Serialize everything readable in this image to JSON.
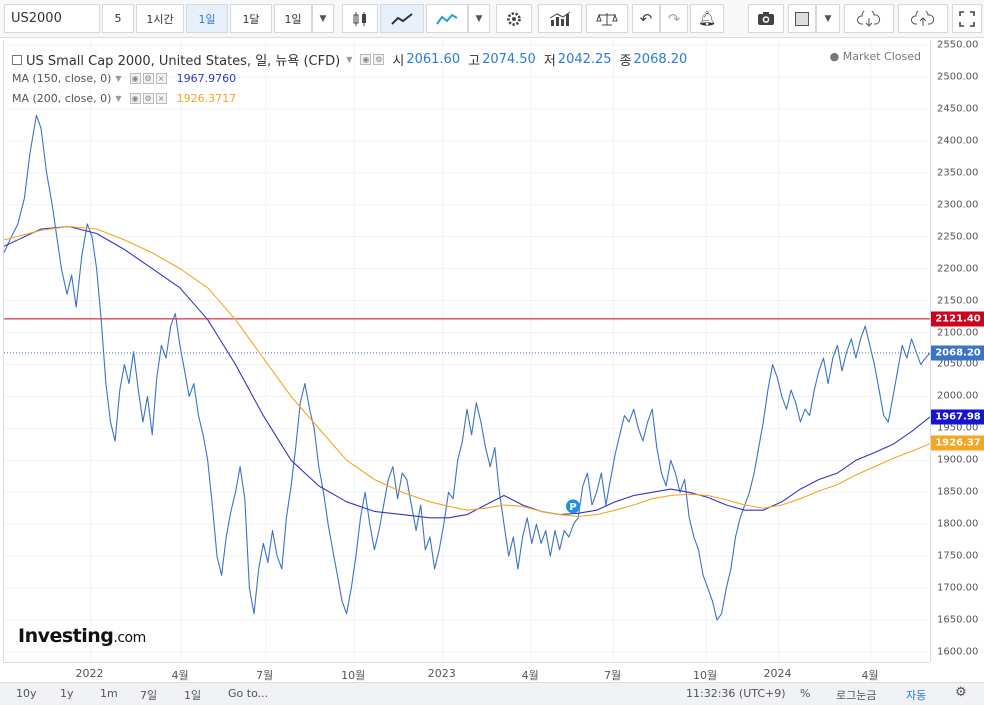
{
  "toolbar": {
    "symbol": "US2000",
    "interval_value": "5",
    "btn_1h": "1시간",
    "btn_1d": "1일",
    "btn_1mo": "1달",
    "btn_range": "1일"
  },
  "legend": {
    "title": "US Small Cap 2000, United States, 일, 뉴욕 (CFD)",
    "open_label": "시",
    "open": "2061.60",
    "high_label": "고",
    "high": "2074.50",
    "low_label": "저",
    "low": "2042.25",
    "close_label": "종",
    "close": "2068.20",
    "ma150_label": "MA (150, close, 0)",
    "ma150": "1967.9760",
    "ma200_label": "MA (200, close, 0)",
    "ma200": "1926.3717",
    "market_status": "Market Closed"
  },
  "logo": {
    "main": "Investing",
    "suffix": ".com"
  },
  "bottom": {
    "r10y": "10y",
    "r1y": "1y",
    "r1m": "1m",
    "r7d": "7일",
    "r1d": "1일",
    "goto": "Go to...",
    "time": "11:32:36 (UTC+9)",
    "percent": "%",
    "log": "로그눈금",
    "auto": "자동"
  },
  "colors": {
    "price": "#3b73c9",
    "ma150": "#3535c8",
    "ma200": "#f5a623",
    "resistance": "#d0021b",
    "last": "#5b8de0"
  },
  "chart_data": {
    "type": "line",
    "y_axis": {
      "min": 1600,
      "max": 2550,
      "ticks": [
        "1600.00",
        "1650.00",
        "1700.00",
        "1750.00",
        "1800.00",
        "1850.00",
        "1900.00",
        "1950.00",
        "2000.00",
        "2050.00",
        "2100.00",
        "2150.00",
        "2200.00",
        "2250.00",
        "2300.00",
        "2350.00",
        "2400.00",
        "2450.00",
        "2500.00",
        "2550.00"
      ]
    },
    "x_ticks": [
      "2022",
      "4월",
      "7월",
      "10월",
      "2023",
      "4월",
      "7월",
      "10월",
      "2024",
      "4월"
    ],
    "x_tick_positions": [
      0.0934,
      0.1912,
      0.2826,
      0.3782,
      0.4738,
      0.5693,
      0.6583,
      0.7582,
      0.8364,
      0.9363
    ],
    "markers": [
      {
        "label": "P",
        "x": 0.6145,
        "y": 1828
      }
    ],
    "hlines": [
      {
        "value": 2121.4,
        "label": "2121.40",
        "color": "#d0021b",
        "style": "solid"
      },
      {
        "value": 2068.2,
        "label": "2068.20",
        "color": "#3b73c9",
        "style": "dotted"
      }
    ],
    "value_tags": [
      {
        "value": 1967.98,
        "label": "1967.98",
        "color": "#1414d2"
      },
      {
        "value": 1926.37,
        "label": "1926.37",
        "color": "#f5a623"
      }
    ],
    "series": [
      {
        "key": "price",
        "color": "#3b73c9",
        "width": 1.1,
        "points": [
          [
            0,
            2225
          ],
          [
            0.008,
            2250
          ],
          [
            0.015,
            2270
          ],
          [
            0.022,
            2310
          ],
          [
            0.028,
            2380
          ],
          [
            0.035,
            2440
          ],
          [
            0.04,
            2420
          ],
          [
            0.046,
            2350
          ],
          [
            0.052,
            2300
          ],
          [
            0.058,
            2240
          ],
          [
            0.062,
            2200
          ],
          [
            0.068,
            2160
          ],
          [
            0.073,
            2190
          ],
          [
            0.078,
            2140
          ],
          [
            0.084,
            2220
          ],
          [
            0.09,
            2270
          ],
          [
            0.095,
            2250
          ],
          [
            0.1,
            2200
          ],
          [
            0.105,
            2120
          ],
          [
            0.11,
            2020
          ],
          [
            0.115,
            1960
          ],
          [
            0.12,
            1930
          ],
          [
            0.125,
            2010
          ],
          [
            0.13,
            2050
          ],
          [
            0.135,
            2020
          ],
          [
            0.14,
            2070
          ],
          [
            0.145,
            2010
          ],
          [
            0.15,
            1960
          ],
          [
            0.155,
            2000
          ],
          [
            0.16,
            1940
          ],
          [
            0.165,
            2030
          ],
          [
            0.17,
            2080
          ],
          [
            0.175,
            2060
          ],
          [
            0.18,
            2110
          ],
          [
            0.185,
            2130
          ],
          [
            0.19,
            2080
          ],
          [
            0.195,
            2040
          ],
          [
            0.2,
            2000
          ],
          [
            0.205,
            2020
          ],
          [
            0.21,
            1970
          ],
          [
            0.215,
            1940
          ],
          [
            0.22,
            1900
          ],
          [
            0.225,
            1830
          ],
          [
            0.23,
            1750
          ],
          [
            0.235,
            1720
          ],
          [
            0.24,
            1780
          ],
          [
            0.245,
            1820
          ],
          [
            0.25,
            1850
          ],
          [
            0.255,
            1890
          ],
          [
            0.26,
            1840
          ],
          [
            0.265,
            1700
          ],
          [
            0.27,
            1660
          ],
          [
            0.275,
            1730
          ],
          [
            0.28,
            1770
          ],
          [
            0.285,
            1740
          ],
          [
            0.29,
            1790
          ],
          [
            0.295,
            1750
          ],
          [
            0.3,
            1730
          ],
          [
            0.305,
            1810
          ],
          [
            0.31,
            1860
          ],
          [
            0.315,
            1920
          ],
          [
            0.32,
            1990
          ],
          [
            0.325,
            2020
          ],
          [
            0.33,
            1980
          ],
          [
            0.335,
            1950
          ],
          [
            0.34,
            1890
          ],
          [
            0.345,
            1850
          ],
          [
            0.35,
            1800
          ],
          [
            0.355,
            1760
          ],
          [
            0.36,
            1720
          ],
          [
            0.365,
            1680
          ],
          [
            0.37,
            1660
          ],
          [
            0.375,
            1700
          ],
          [
            0.38,
            1750
          ],
          [
            0.385,
            1810
          ],
          [
            0.39,
            1850
          ],
          [
            0.395,
            1800
          ],
          [
            0.4,
            1760
          ],
          [
            0.405,
            1790
          ],
          [
            0.41,
            1830
          ],
          [
            0.415,
            1870
          ],
          [
            0.42,
            1890
          ],
          [
            0.425,
            1840
          ],
          [
            0.43,
            1880
          ],
          [
            0.435,
            1870
          ],
          [
            0.44,
            1830
          ],
          [
            0.445,
            1790
          ],
          [
            0.45,
            1830
          ],
          [
            0.455,
            1760
          ],
          [
            0.46,
            1780
          ],
          [
            0.465,
            1730
          ],
          [
            0.47,
            1760
          ],
          [
            0.475,
            1800
          ],
          [
            0.48,
            1850
          ],
          [
            0.485,
            1840
          ],
          [
            0.49,
            1900
          ],
          [
            0.495,
            1930
          ],
          [
            0.5,
            1980
          ],
          [
            0.505,
            1940
          ],
          [
            0.51,
            1990
          ],
          [
            0.515,
            1960
          ],
          [
            0.52,
            1920
          ],
          [
            0.525,
            1890
          ],
          [
            0.53,
            1920
          ],
          [
            0.535,
            1850
          ],
          [
            0.54,
            1800
          ],
          [
            0.545,
            1750
          ],
          [
            0.55,
            1780
          ],
          [
            0.555,
            1730
          ],
          [
            0.56,
            1780
          ],
          [
            0.565,
            1810
          ],
          [
            0.57,
            1770
          ],
          [
            0.575,
            1800
          ],
          [
            0.58,
            1770
          ],
          [
            0.585,
            1790
          ],
          [
            0.59,
            1750
          ],
          [
            0.595,
            1790
          ],
          [
            0.6,
            1760
          ],
          [
            0.605,
            1790
          ],
          [
            0.61,
            1780
          ],
          [
            0.615,
            1800
          ],
          [
            0.62,
            1810
          ],
          [
            0.625,
            1860
          ],
          [
            0.63,
            1880
          ],
          [
            0.635,
            1830
          ],
          [
            0.64,
            1850
          ],
          [
            0.645,
            1880
          ],
          [
            0.65,
            1830
          ],
          [
            0.655,
            1870
          ],
          [
            0.66,
            1910
          ],
          [
            0.665,
            1940
          ],
          [
            0.67,
            1970
          ],
          [
            0.675,
            1960
          ],
          [
            0.68,
            1980
          ],
          [
            0.685,
            1950
          ],
          [
            0.69,
            1930
          ],
          [
            0.695,
            1960
          ],
          [
            0.7,
            1980
          ],
          [
            0.705,
            1920
          ],
          [
            0.71,
            1880
          ],
          [
            0.715,
            1860
          ],
          [
            0.72,
            1900
          ],
          [
            0.725,
            1880
          ],
          [
            0.73,
            1850
          ],
          [
            0.735,
            1870
          ],
          [
            0.74,
            1810
          ],
          [
            0.745,
            1780
          ],
          [
            0.75,
            1760
          ],
          [
            0.755,
            1720
          ],
          [
            0.76,
            1700
          ],
          [
            0.765,
            1680
          ],
          [
            0.77,
            1650
          ],
          [
            0.775,
            1660
          ],
          [
            0.78,
            1700
          ],
          [
            0.785,
            1730
          ],
          [
            0.79,
            1780
          ],
          [
            0.795,
            1810
          ],
          [
            0.8,
            1830
          ],
          [
            0.805,
            1850
          ],
          [
            0.81,
            1880
          ],
          [
            0.815,
            1920
          ],
          [
            0.82,
            1960
          ],
          [
            0.825,
            2010
          ],
          [
            0.83,
            2050
          ],
          [
            0.835,
            2030
          ],
          [
            0.84,
            2000
          ],
          [
            0.845,
            1980
          ],
          [
            0.85,
            2010
          ],
          [
            0.855,
            1990
          ],
          [
            0.86,
            1960
          ],
          [
            0.865,
            1980
          ],
          [
            0.87,
            1970
          ],
          [
            0.875,
            2010
          ],
          [
            0.88,
            2040
          ],
          [
            0.885,
            2060
          ],
          [
            0.89,
            2020
          ],
          [
            0.895,
            2060
          ],
          [
            0.9,
            2080
          ],
          [
            0.905,
            2040
          ],
          [
            0.91,
            2070
          ],
          [
            0.915,
            2090
          ],
          [
            0.92,
            2060
          ],
          [
            0.925,
            2090
          ],
          [
            0.93,
            2110
          ],
          [
            0.935,
            2080
          ],
          [
            0.94,
            2050
          ],
          [
            0.945,
            2010
          ],
          [
            0.95,
            1970
          ],
          [
            0.955,
            1960
          ],
          [
            0.96,
            2000
          ],
          [
            0.965,
            2040
          ],
          [
            0.97,
            2080
          ],
          [
            0.975,
            2060
          ],
          [
            0.98,
            2090
          ],
          [
            0.985,
            2070
          ],
          [
            0.99,
            2050
          ],
          [
            0.995,
            2060
          ],
          [
            1.0,
            2068
          ]
        ]
      },
      {
        "key": "ma150",
        "color": "#3535c8",
        "width": 1.1,
        "points": [
          [
            0,
            2235
          ],
          [
            0.04,
            2262
          ],
          [
            0.07,
            2266
          ],
          [
            0.1,
            2255
          ],
          [
            0.13,
            2230
          ],
          [
            0.16,
            2200
          ],
          [
            0.19,
            2170
          ],
          [
            0.22,
            2120
          ],
          [
            0.25,
            2050
          ],
          [
            0.28,
            1970
          ],
          [
            0.31,
            1900
          ],
          [
            0.34,
            1860
          ],
          [
            0.37,
            1835
          ],
          [
            0.4,
            1820
          ],
          [
            0.43,
            1815
          ],
          [
            0.46,
            1810
          ],
          [
            0.48,
            1810
          ],
          [
            0.5,
            1815
          ],
          [
            0.52,
            1830
          ],
          [
            0.54,
            1845
          ],
          [
            0.56,
            1830
          ],
          [
            0.58,
            1820
          ],
          [
            0.6,
            1815
          ],
          [
            0.62,
            1817
          ],
          [
            0.64,
            1822
          ],
          [
            0.66,
            1835
          ],
          [
            0.68,
            1845
          ],
          [
            0.7,
            1850
          ],
          [
            0.72,
            1855
          ],
          [
            0.74,
            1850
          ],
          [
            0.76,
            1842
          ],
          [
            0.78,
            1830
          ],
          [
            0.8,
            1822
          ],
          [
            0.82,
            1822
          ],
          [
            0.84,
            1835
          ],
          [
            0.86,
            1855
          ],
          [
            0.88,
            1870
          ],
          [
            0.9,
            1880
          ],
          [
            0.92,
            1900
          ],
          [
            0.94,
            1912
          ],
          [
            0.96,
            1925
          ],
          [
            0.98,
            1945
          ],
          [
            1.0,
            1968
          ]
        ]
      },
      {
        "key": "ma200",
        "color": "#f5a623",
        "width": 1.1,
        "points": [
          [
            0,
            2245
          ],
          [
            0.04,
            2260
          ],
          [
            0.07,
            2266
          ],
          [
            0.1,
            2262
          ],
          [
            0.13,
            2245
          ],
          [
            0.16,
            2225
          ],
          [
            0.19,
            2200
          ],
          [
            0.22,
            2170
          ],
          [
            0.25,
            2120
          ],
          [
            0.28,
            2060
          ],
          [
            0.31,
            2000
          ],
          [
            0.34,
            1950
          ],
          [
            0.37,
            1900
          ],
          [
            0.4,
            1870
          ],
          [
            0.43,
            1850
          ],
          [
            0.46,
            1835
          ],
          [
            0.48,
            1828
          ],
          [
            0.5,
            1822
          ],
          [
            0.52,
            1825
          ],
          [
            0.54,
            1830
          ],
          [
            0.56,
            1828
          ],
          [
            0.58,
            1820
          ],
          [
            0.6,
            1815
          ],
          [
            0.62,
            1812
          ],
          [
            0.64,
            1815
          ],
          [
            0.66,
            1822
          ],
          [
            0.68,
            1830
          ],
          [
            0.7,
            1840
          ],
          [
            0.72,
            1845
          ],
          [
            0.74,
            1847
          ],
          [
            0.76,
            1845
          ],
          [
            0.78,
            1838
          ],
          [
            0.8,
            1830
          ],
          [
            0.82,
            1825
          ],
          [
            0.84,
            1830
          ],
          [
            0.86,
            1840
          ],
          [
            0.88,
            1852
          ],
          [
            0.9,
            1862
          ],
          [
            0.92,
            1877
          ],
          [
            0.94,
            1890
          ],
          [
            0.96,
            1903
          ],
          [
            0.98,
            1914
          ],
          [
            1.0,
            1926
          ]
        ]
      }
    ]
  }
}
